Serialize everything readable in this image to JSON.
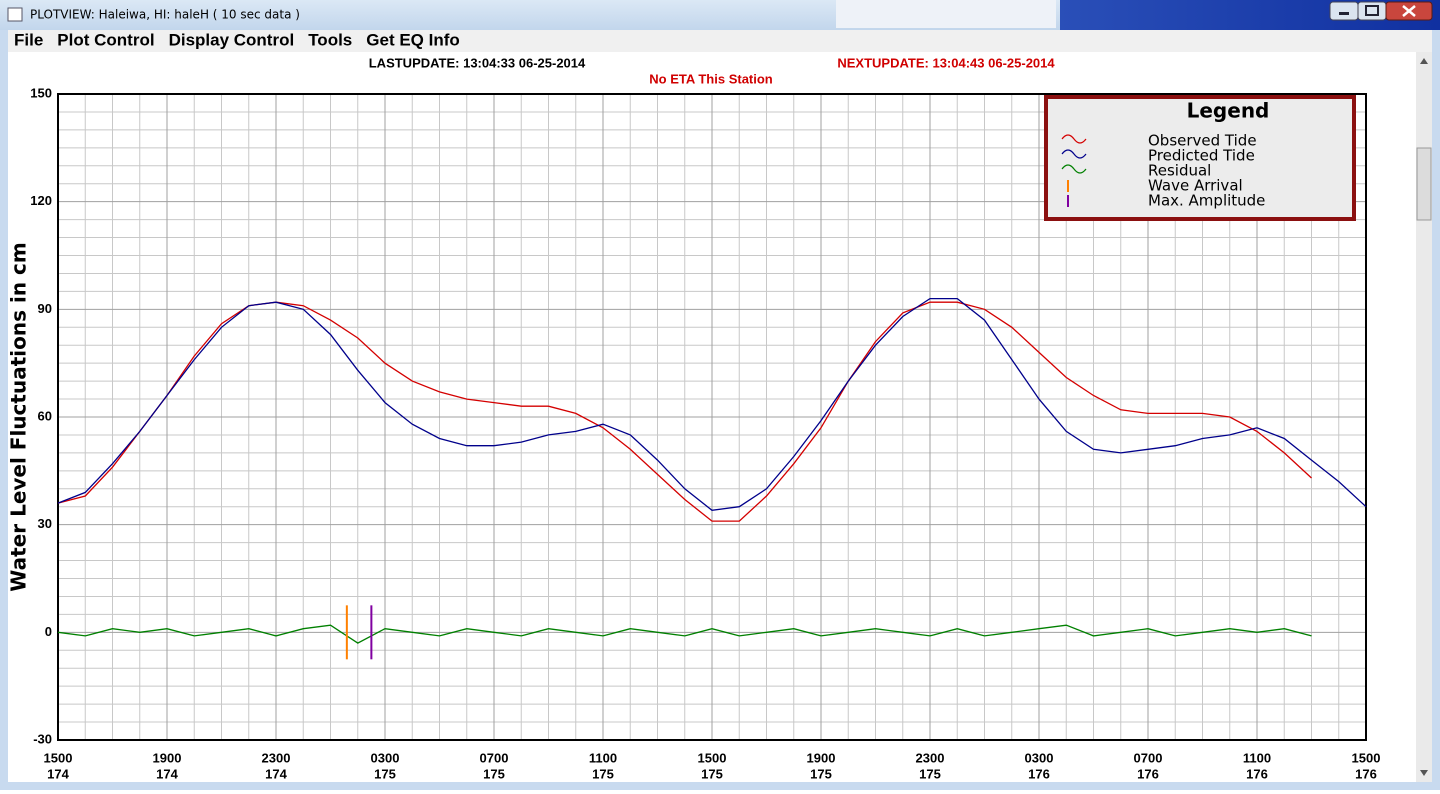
{
  "window": {
    "title": "PLOTVIEW:   Haleiwa, HI: haleH ( 10 sec data )"
  },
  "menu": [
    "File",
    "Plot Control",
    "Display Control",
    "Tools",
    "Get EQ Info"
  ],
  "chart_data": {
    "type": "line",
    "last_update": "LASTUPDATE: 13:04:33 06-25-2014",
    "next_update": "NEXTUPDATE: 13:04:43 06-25-2014",
    "eta": "No ETA This Station",
    "y_label": "Water Level Fluctuations in cm",
    "xlim": [
      0,
      48
    ],
    "xticks": [
      {
        "value": 0,
        "label": "1500"
      },
      {
        "value": 4,
        "label": "1900"
      },
      {
        "value": 8,
        "label": "2300"
      },
      {
        "value": 12,
        "label": "0300"
      },
      {
        "value": 16,
        "label": "0700"
      },
      {
        "value": 20,
        "label": "1100"
      },
      {
        "value": 24,
        "label": "1500"
      },
      {
        "value": 28,
        "label": "1900"
      },
      {
        "value": 32,
        "label": "2300"
      },
      {
        "value": 36,
        "label": "0300"
      },
      {
        "value": 40,
        "label": "0700"
      },
      {
        "value": 44,
        "label": "1100"
      },
      {
        "value": 48,
        "label": "1500"
      }
    ],
    "xtick_days": [
      "174",
      "174",
      "174",
      "175",
      "175",
      "175",
      "175",
      "175",
      "175",
      "176",
      "176",
      "176",
      "176"
    ],
    "ylim": [
      -30,
      150
    ],
    "yticks": [
      150,
      120,
      90,
      60,
      30,
      0,
      -30
    ],
    "grid": true,
    "legend": {
      "title": "Legend",
      "position": "upper-right"
    },
    "x": [
      0,
      1,
      2,
      3,
      4,
      5,
      6,
      7,
      8,
      9,
      10,
      11,
      12,
      13,
      14,
      15,
      16,
      17,
      18,
      19,
      20,
      21,
      22,
      23,
      24,
      25,
      26,
      27,
      28,
      29,
      30,
      31,
      32,
      33,
      34,
      35,
      36,
      37,
      38,
      39,
      40,
      41,
      42,
      43,
      44,
      45,
      46,
      47,
      48
    ],
    "series": [
      {
        "name": "Observed Tide",
        "color": "#d40000",
        "values": [
          36,
          38,
          46,
          56,
          66,
          77,
          86,
          91,
          92,
          91,
          87,
          82,
          75,
          70,
          67,
          65,
          64,
          63,
          63,
          61,
          57,
          51,
          44,
          37,
          31,
          31,
          38,
          47,
          57,
          70,
          81,
          89,
          92,
          92,
          90,
          85,
          78,
          71,
          66,
          62,
          61,
          61,
          61,
          60,
          56,
          50,
          43,
          null,
          null
        ]
      },
      {
        "name": "Predicted Tide",
        "color": "#00008b",
        "values": [
          36,
          39,
          47,
          56,
          66,
          76,
          85,
          91,
          92,
          90,
          83,
          73,
          64,
          58,
          54,
          52,
          52,
          53,
          55,
          56,
          58,
          55,
          48,
          40,
          34,
          35,
          40,
          49,
          59,
          70,
          80,
          88,
          93,
          93,
          87,
          76,
          65,
          56,
          51,
          50,
          51,
          52,
          54,
          55,
          57,
          54,
          48,
          42,
          35
        ]
      },
      {
        "name": "Residual",
        "color": "#008000",
        "values": [
          0,
          -1,
          1,
          0,
          1,
          -1,
          0,
          1,
          -1,
          1,
          2,
          -3,
          1,
          0,
          -1,
          1,
          0,
          -1,
          1,
          0,
          -1,
          1,
          0,
          -1,
          1,
          -1,
          0,
          1,
          -1,
          0,
          1,
          0,
          -1,
          1,
          -1,
          0,
          1,
          2,
          -1,
          0,
          1,
          -1,
          0,
          1,
          0,
          1,
          -1,
          null,
          null
        ]
      }
    ],
    "events": [
      {
        "name": "Wave Arrival",
        "color": "#ff8000",
        "x": 10.6
      },
      {
        "name": "Max. Amplitude",
        "color": "#8000a0",
        "x": 11.5
      }
    ]
  }
}
